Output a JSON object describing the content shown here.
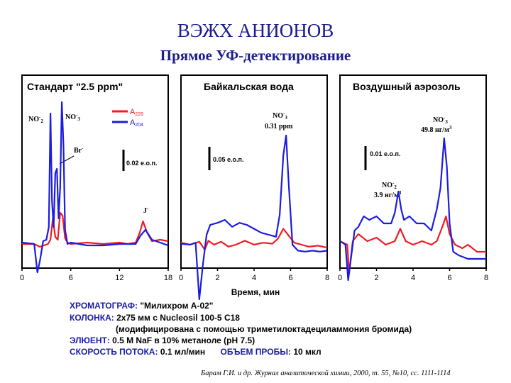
{
  "header": {
    "title": "ВЭЖХ АНИОНОВ",
    "subtitle": "Прямое УФ-детектирование"
  },
  "colors": {
    "a226": "#ee1c24",
    "a204": "#1c1ce0",
    "text_blue": "#1a1aa8"
  },
  "chart_data": [
    {
      "type": "line",
      "title": "Стандарт \"2.5 ppm\"",
      "xlim": [
        0,
        18
      ],
      "xticks": [
        "0",
        "6",
        "12",
        "18"
      ],
      "scale_bar": "0.02 е.о.п.",
      "legend": [
        "A226",
        "A204"
      ],
      "peak_labels": [
        "NO2-",
        "NO3-",
        "Br-",
        "J-"
      ],
      "series": [
        {
          "name": "A226",
          "color": "#ee1c24",
          "x": [
            0,
            1.5,
            2.2,
            3.2,
            3.5,
            3.8,
            4.1,
            4.4,
            4.7,
            5.0,
            5.3,
            5.6,
            6,
            8,
            10,
            12,
            13,
            14,
            14.5,
            14.9,
            15.4,
            16,
            17,
            18
          ],
          "y": [
            0,
            0,
            -0.002,
            0,
            0.003,
            0.018,
            0.005,
            0.003,
            0.022,
            0.02,
            0.004,
            0.001,
            0,
            0.001,
            0,
            0.001,
            0,
            0.001,
            0.008,
            0.016,
            0.008,
            0.002,
            0.003,
            0.002
          ]
        },
        {
          "name": "A204",
          "color": "#1c1ce0",
          "x": [
            0,
            1.5,
            1.9,
            2.2,
            2.6,
            3,
            3.3,
            3.5,
            3.7,
            3.9,
            4.1,
            4.3,
            4.5,
            4.7,
            4.9,
            5.1,
            5.3,
            5.6,
            6,
            8,
            10,
            12,
            13,
            14,
            14.6,
            15.2,
            16,
            18
          ],
          "y": [
            0.001,
            0,
            -0.02,
            -0.012,
            0.002,
            0.003,
            0.012,
            0.092,
            0.03,
            0.012,
            0.05,
            0.053,
            0.018,
            0.04,
            0.1,
            0.07,
            0.01,
            0,
            0.001,
            -0.001,
            -0.001,
            0,
            0,
            0,
            0.006,
            0.01,
            0.003,
            -0.001
          ]
        }
      ]
    },
    {
      "type": "line",
      "title": "Байкальская вода",
      "xlim": [
        0,
        8
      ],
      "xticks": [
        "0",
        "2",
        "4",
        "6",
        "8"
      ],
      "scale_bar": "0.05 е.о.п.",
      "peak_labels": [
        "NO3-",
        "0.31 ppm"
      ],
      "series": [
        {
          "name": "A226",
          "color": "#ee1c24",
          "x": [
            0,
            0.5,
            1,
            1.3,
            1.5,
            1.8,
            2.2,
            2.6,
            3,
            3.5,
            4,
            4.5,
            5,
            5.3,
            5.6,
            5.9,
            6.2,
            6.6,
            7,
            7.5,
            8
          ],
          "y": [
            0.002,
            0,
            0.003,
            -0.005,
            0.004,
            0,
            0.003,
            -0.002,
            0,
            0.004,
            0,
            0.002,
            0.001,
            0.006,
            0.016,
            0.009,
            0.002,
            0,
            -0.002,
            -0.001,
            -0.003
          ]
        },
        {
          "name": "A204",
          "color": "#1c1ce0",
          "x": [
            0,
            0.5,
            0.8,
            1.0,
            1.2,
            1.4,
            1.6,
            2.0,
            2.4,
            2.8,
            3.2,
            3.6,
            4.0,
            4.4,
            4.8,
            5.2,
            5.4,
            5.6,
            5.75,
            5.9,
            6.1,
            6.4,
            6.8,
            7.2,
            7.6,
            8
          ],
          "y": [
            0.001,
            0,
            0.002,
            -0.055,
            -0.02,
            0.01,
            0.02,
            0.022,
            0.025,
            0.018,
            0.022,
            0.02,
            0.016,
            0.012,
            0.01,
            0.008,
            0.03,
            0.09,
            0.11,
            0.06,
            0,
            -0.006,
            -0.007,
            -0.006,
            -0.007,
            -0.006
          ]
        }
      ]
    },
    {
      "type": "line",
      "title": "Воздушный аэрозоль",
      "xlim": [
        0,
        8
      ],
      "xticks": [
        "0",
        "2",
        "4",
        "6",
        "8"
      ],
      "scale_bar": "0.01 е.о.п.",
      "peak_labels": [
        "NO3-",
        "49.8 нг/м3",
        "NO2-",
        "3.9 нг/м3"
      ],
      "series": [
        {
          "name": "A226",
          "color": "#ee1c24",
          "x": [
            0,
            0.4,
            0.5,
            0.7,
            1,
            1.5,
            2,
            2.5,
            3,
            3.3,
            3.6,
            4,
            4.5,
            5,
            5.3,
            5.6,
            5.8,
            6.0,
            6.3,
            6.7,
            7,
            7.5,
            8
          ],
          "y": [
            0.001,
            0,
            -0.008,
            0.001,
            0.003,
            0.001,
            0.002,
            0,
            0.001,
            0.0045,
            0.001,
            0,
            0.001,
            0,
            0.001,
            0.005,
            0.008,
            0.003,
            0,
            -0.001,
            0,
            -0.002,
            -0.002
          ]
        },
        {
          "name": "A204",
          "color": "#1c1ce0",
          "x": [
            0,
            0.3,
            0.45,
            0.6,
            0.8,
            1.0,
            1.3,
            1.6,
            2.0,
            2.4,
            2.8,
            3.0,
            3.2,
            3.35,
            3.5,
            3.8,
            4.2,
            4.6,
            5.0,
            5.3,
            5.5,
            5.7,
            5.85,
            6.0,
            6.2,
            6.5,
            7,
            7.5,
            8
          ],
          "y": [
            0.001,
            0,
            -0.01,
            -0.004,
            0.004,
            0.005,
            0.008,
            0.007,
            0.008,
            0.006,
            0.006,
            0.009,
            0.015,
            0.01,
            0.007,
            0.008,
            0.006,
            0.006,
            0.004,
            0.01,
            0.016,
            0.03,
            0.022,
            0.006,
            -0.002,
            -0.003,
            -0.004,
            -0.004,
            -0.004
          ]
        }
      ]
    }
  ],
  "axis_x_label": "Время, мин",
  "info": {
    "line1_key": "ХРОМАТОГРАФ:",
    "line1_val": "\"Милихром А-02\"",
    "line2_key": "КОЛОНКА:",
    "line2_val": "2x75 мм с Nucleosil 100-5 C18",
    "line3": "(модифицирована с помощью триметилоктадециламмония бромида)",
    "line4_key": "ЭЛЮЕНТ:",
    "line4_val": "0.5 M NaF в 10% метаноле (pH 7.5)",
    "line5_key": "СКОРОСТЬ ПОТОКА:",
    "line5_val": "0.1 мл/мин",
    "line5_key2": "ОБЪЕМ ПРОБЫ:",
    "line5_val2": "10 мкл"
  },
  "citation": "Барам Г.И. и др. Журнал аналитической химии, 2000, т. 55, №10, сс. 1111-1114"
}
